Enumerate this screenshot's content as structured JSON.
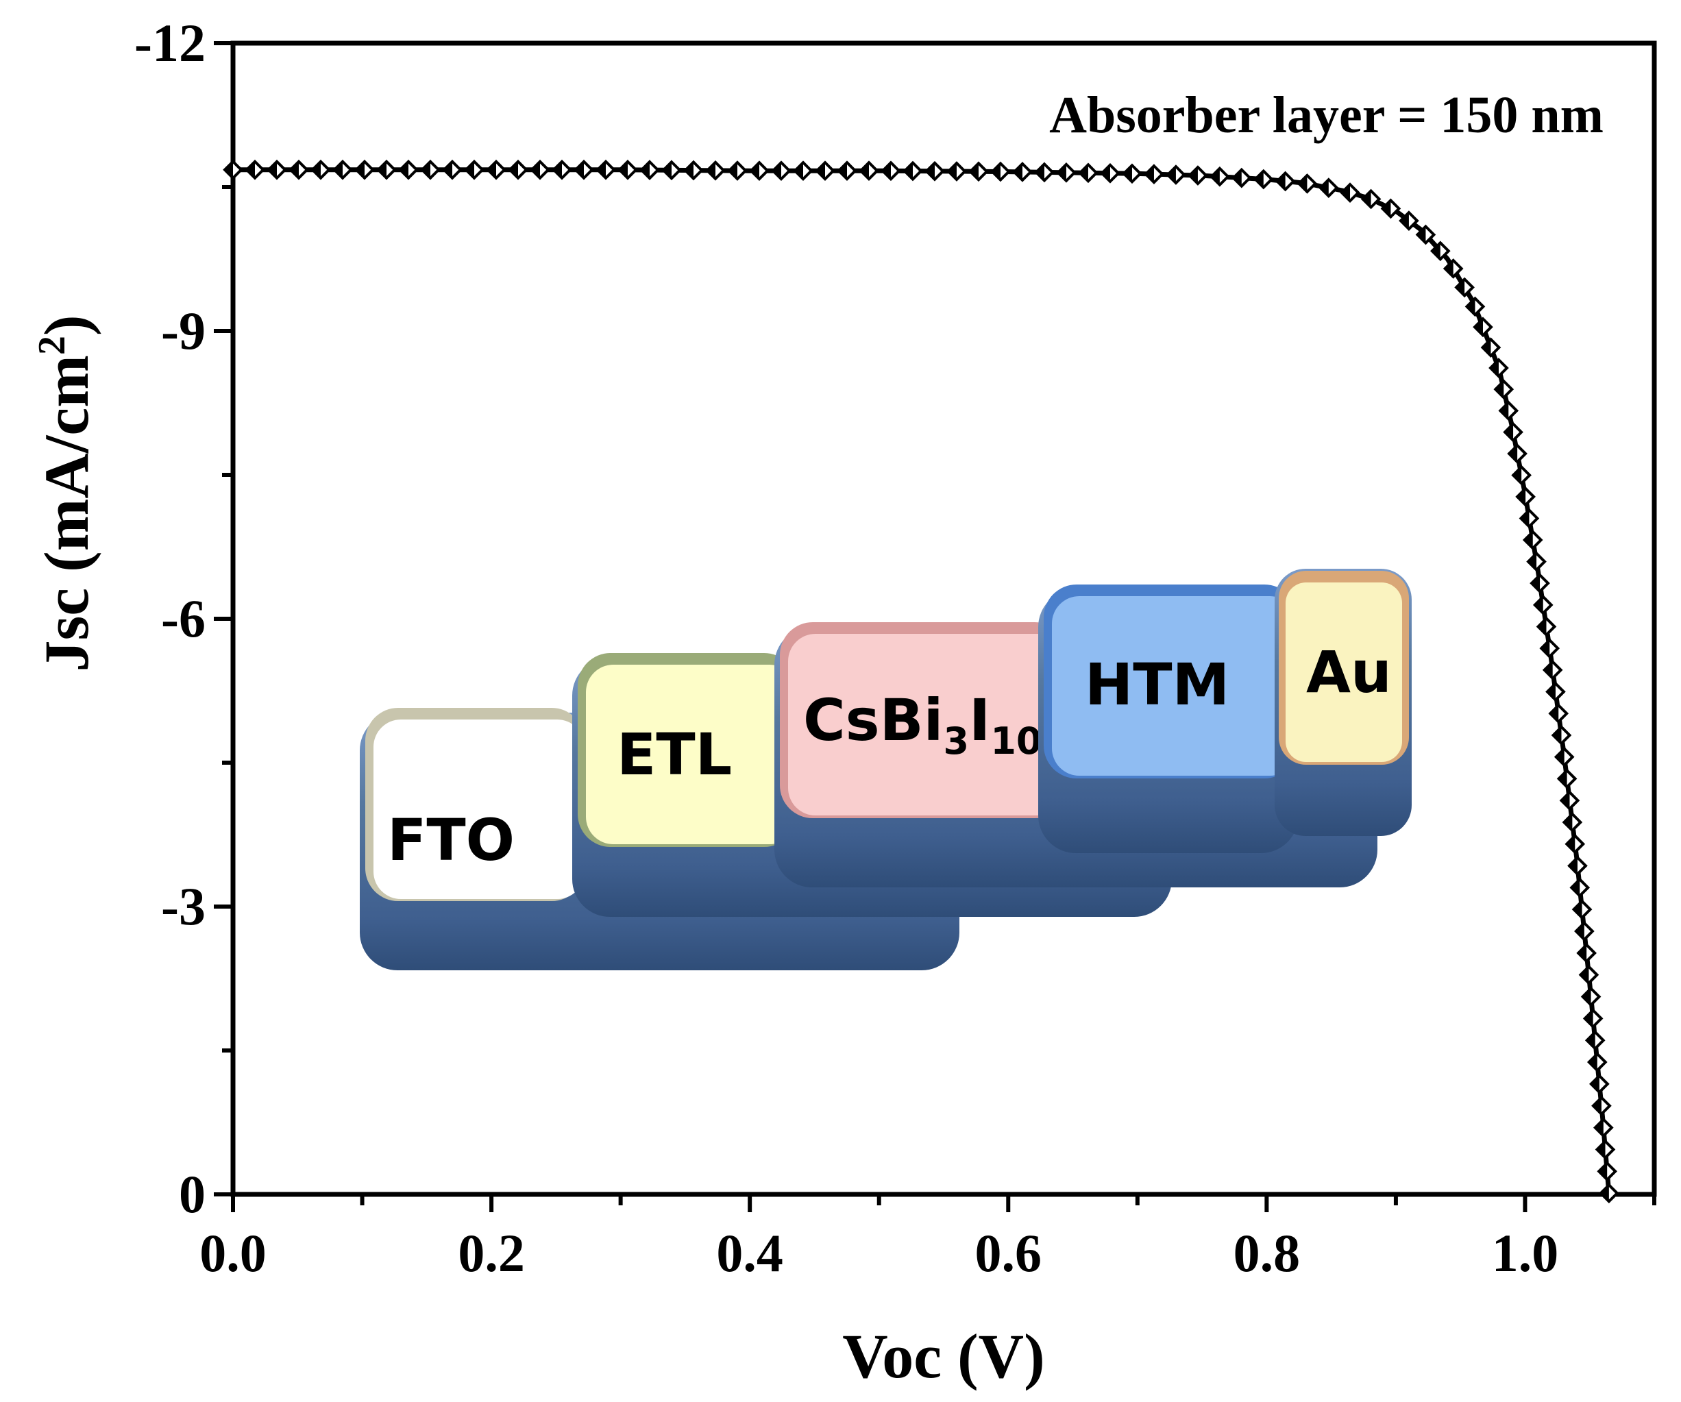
{
  "chart_data": {
    "type": "line",
    "title": "",
    "annotation": "Absorber layer = 150 nm",
    "xlabel": "Voc (V)",
    "ylabel": {
      "main": "Jsc (mA/cm",
      "sup": "2",
      "close": ")"
    },
    "xlim": [
      0.0,
      1.1
    ],
    "ylim": [
      0,
      -12
    ],
    "x_ticks": [
      "0.0",
      "0.2",
      "0.4",
      "0.6",
      "0.8",
      "1.0"
    ],
    "x_tick_values": [
      0.0,
      0.2,
      0.4,
      0.6,
      0.8,
      1.0
    ],
    "y_ticks": [
      "-12",
      "-9",
      "-6",
      "-3",
      "0"
    ],
    "y_tick_values": [
      -12,
      -9,
      -6,
      -3,
      0
    ],
    "grid": false,
    "series": [
      {
        "marker": "diamond",
        "color": "#000000",
        "x": [
          0.0,
          0.1,
          0.2,
          0.3,
          0.4,
          0.5,
          0.6,
          0.7,
          0.75,
          0.8,
          0.83,
          0.86,
          0.88,
          0.9,
          0.92,
          0.94,
          0.96,
          0.98,
          0.99,
          1.0,
          1.01,
          1.02,
          1.03,
          1.04,
          1.05,
          1.06,
          1.065
        ],
        "y": [
          -10.68,
          -10.68,
          -10.68,
          -10.68,
          -10.67,
          -10.67,
          -10.66,
          -10.64,
          -10.62,
          -10.58,
          -10.54,
          -10.46,
          -10.38,
          -10.25,
          -10.05,
          -9.75,
          -9.3,
          -8.6,
          -8.0,
          -7.3,
          -6.5,
          -5.6,
          -4.6,
          -3.5,
          -2.2,
          -0.8,
          0.0
        ]
      }
    ]
  },
  "inset": {
    "layers": [
      {
        "label": "FTO",
        "face_color": "#ffffff",
        "rim_color": "#c8c5ad"
      },
      {
        "label": "ETL",
        "face_color": "#fdfdc8",
        "rim_color": "#9aab78"
      },
      {
        "label": "CsBi",
        "sub1": "3",
        "label_mid": "I",
        "sub2": "10",
        "face_color": "#f9cece",
        "rim_color": "#d99a9a"
      },
      {
        "label": "HTM",
        "face_color": "#8fbcf2",
        "rim_color": "#4a7fcc"
      },
      {
        "label": "Au",
        "face_color": "#faf3c0",
        "rim_color": "#d9a777"
      }
    ],
    "base_color": "#4f72a6"
  }
}
